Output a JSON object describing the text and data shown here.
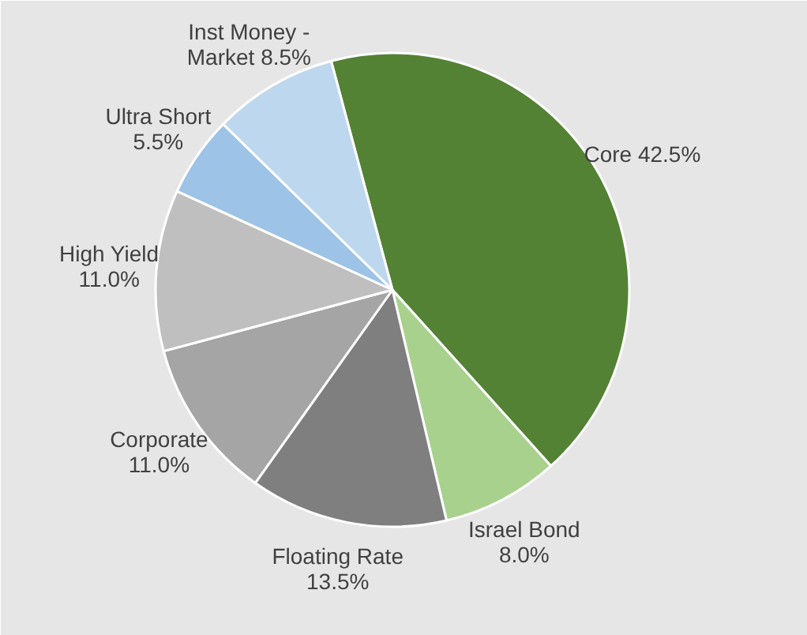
{
  "chart_data": {
    "type": "pie",
    "categories": [
      "Core",
      "Israel Bond",
      "Floating Rate",
      "Corporate",
      "High Yield",
      "Ultra Short",
      "Inst Money - Market"
    ],
    "values": [
      42.5,
      8.0,
      13.5,
      11.0,
      11.0,
      5.5,
      8.5
    ],
    "value_labels": [
      "42.5%",
      "8.0%",
      "13.5%",
      "11.0%",
      "11.0%",
      "5.5%",
      "8.5%"
    ],
    "colors": [
      "#548235",
      "#a9d18e",
      "#7f7f7f",
      "#a5a5a5",
      "#bfbfbf",
      "#9dc3e6",
      "#bdd7ee"
    ]
  }
}
